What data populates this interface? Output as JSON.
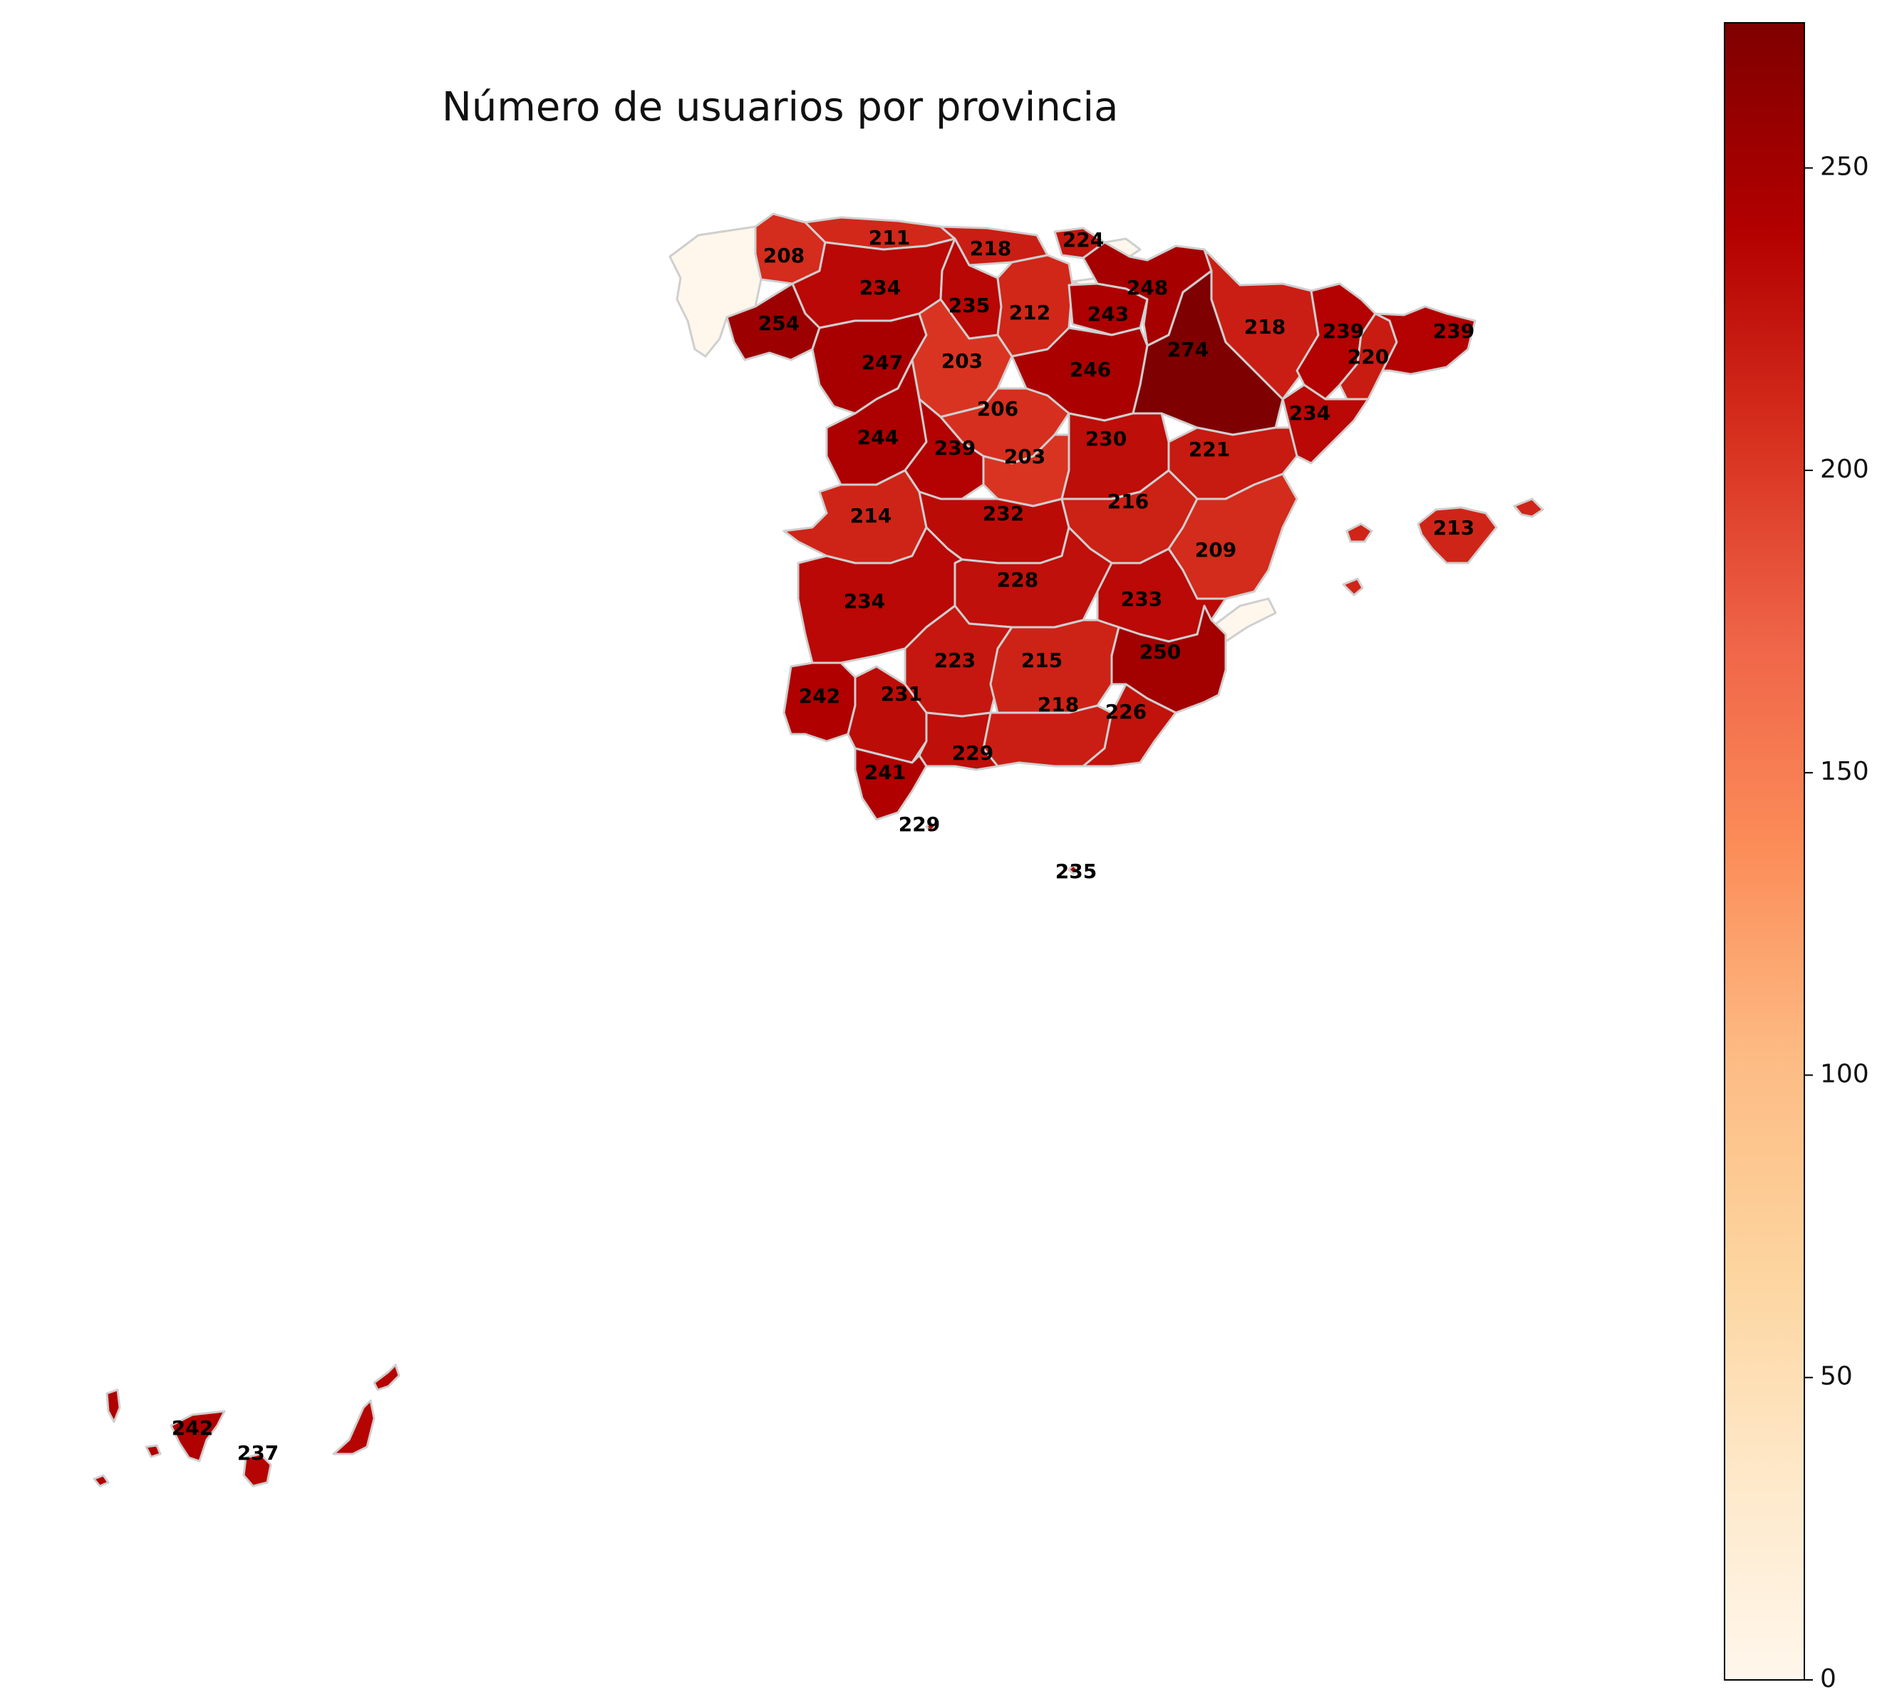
{
  "title": "Número de usuarios por provincia",
  "colorbar": {
    "cmap": "OrRd",
    "min": 0,
    "max": 274,
    "ticks": [
      "0",
      "50",
      "100",
      "150",
      "200",
      "250"
    ],
    "color_low": "#fff7ec",
    "color_high": "#7f0000"
  },
  "chart_data": {
    "type": "choropleth",
    "title": "Número de usuarios por provincia",
    "missing_color": "#fff7ec",
    "regions": [
      {
        "value": 208
      },
      {
        "value": 211
      },
      {
        "value": 218
      },
      {
        "value": 224
      },
      {
        "value": 234
      },
      {
        "value": 235
      },
      {
        "value": 212
      },
      {
        "value": 243
      },
      {
        "value": 248
      },
      {
        "value": 254
      },
      {
        "value": 247
      },
      {
        "value": 203
      },
      {
        "value": 246
      },
      {
        "value": 274
      },
      {
        "value": 218
      },
      {
        "value": 239
      },
      {
        "value": 220
      },
      {
        "value": 239
      },
      {
        "value": 206
      },
      {
        "value": 234
      },
      {
        "value": 244
      },
      {
        "value": 239
      },
      {
        "value": 203
      },
      {
        "value": 230
      },
      {
        "value": 221
      },
      {
        "value": 214
      },
      {
        "value": 232
      },
      {
        "value": 216
      },
      {
        "value": 213
      },
      {
        "value": 209
      },
      {
        "value": 228
      },
      {
        "value": 234
      },
      {
        "value": 233
      },
      {
        "value": 223
      },
      {
        "value": 215
      },
      {
        "value": 250
      },
      {
        "value": 242
      },
      {
        "value": 231
      },
      {
        "value": 218
      },
      {
        "value": 226
      },
      {
        "value": 229
      },
      {
        "value": 241
      },
      {
        "value": 229
      },
      {
        "value": 235
      },
      {
        "value": 242
      },
      {
        "value": 237
      }
    ]
  }
}
